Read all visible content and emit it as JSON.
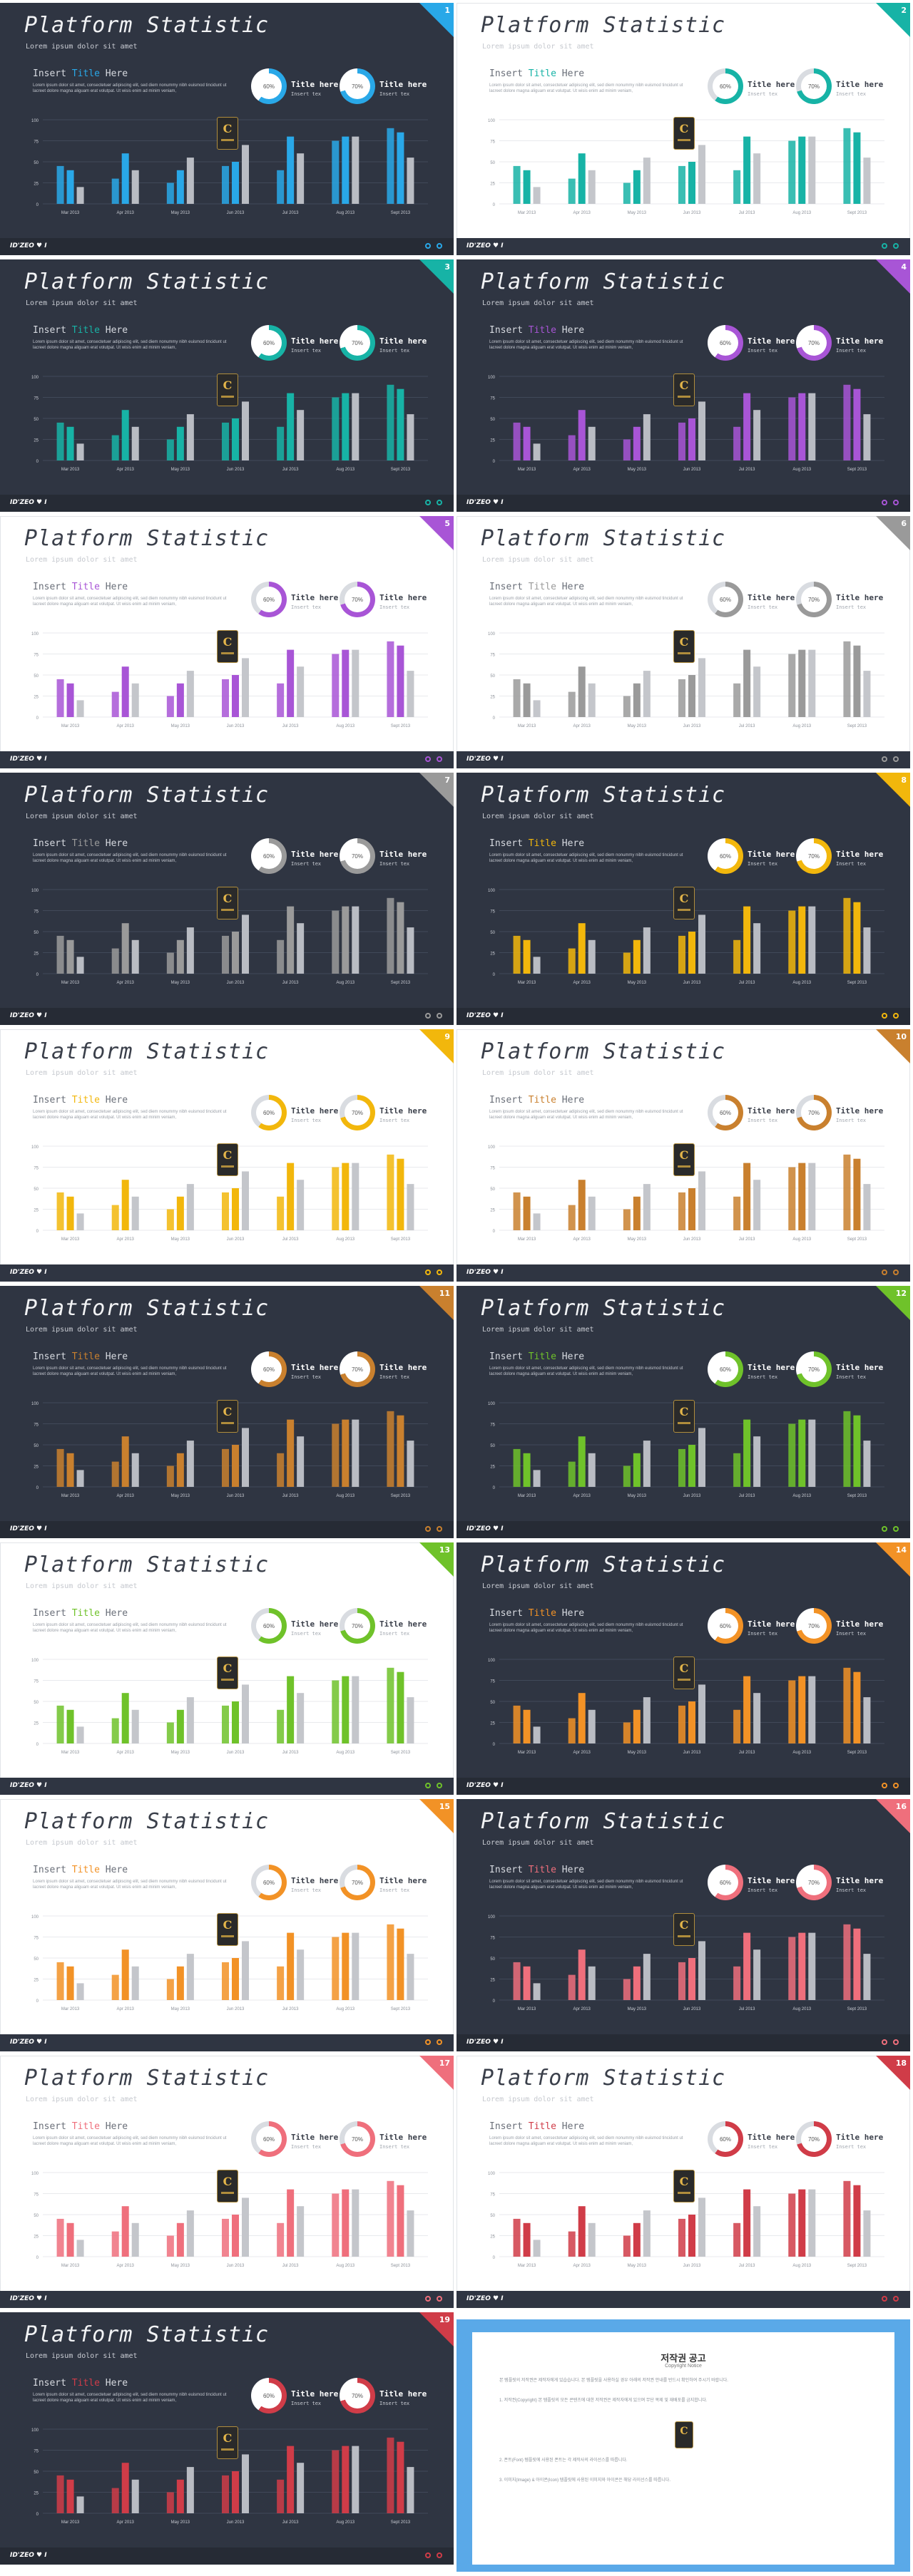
{
  "common": {
    "title": "Platform Statistic",
    "subtitle": "Lorem ipsum dolor sit amet",
    "insert_title_prefix": "Insert ",
    "insert_title_word": "Title",
    "insert_title_suffix": " Here",
    "lorem": "Lorem ipsum dolor sit amet, consectetuer adipiscing elit, sed diem nonummy nibh euismod tincidunt ut lacreet dolore magna aliguam erat volutpat. Ut wisis enim ad minim veniam,",
    "donut1": {
      "value": "60%",
      "pct": 60,
      "title": "Title here",
      "sub": "Insert tex"
    },
    "donut2": {
      "value": "70%",
      "pct": 70,
      "title": "Title here",
      "sub": "Insert tex"
    },
    "footer_brand": "ID'ZEO ♥ I",
    "badge_letter": "C"
  },
  "chart_data": {
    "type": "bar",
    "categories": [
      "Mar 2013",
      "Apr 2013",
      "May 2013",
      "Jun 2013",
      "Jul 2013",
      "Aug 2013",
      "Sept 2013"
    ],
    "ylim": [
      0,
      100
    ],
    "yticks": [
      "0",
      "25",
      "50",
      "75",
      "100"
    ],
    "series": [
      {
        "values": [
          45,
          30,
          25,
          45,
          40,
          75,
          90
        ]
      },
      {
        "values": [
          40,
          60,
          40,
          50,
          80,
          80,
          85
        ]
      },
      {
        "values": [
          20,
          40,
          55,
          70,
          60,
          80,
          55
        ]
      }
    ]
  },
  "slides": [
    {
      "num": "1",
      "theme": "dark",
      "accent": "#29a8e8"
    },
    {
      "num": "2",
      "theme": "light",
      "accent": "#17b3a6"
    },
    {
      "num": "3",
      "theme": "dark",
      "accent": "#17b3a6"
    },
    {
      "num": "4",
      "theme": "dark",
      "accent": "#a855d6"
    },
    {
      "num": "5",
      "theme": "light",
      "accent": "#a855d6"
    },
    {
      "num": "6",
      "theme": "light",
      "accent": "#9a9a9a"
    },
    {
      "num": "7",
      "theme": "dark",
      "accent": "#9a9a9a"
    },
    {
      "num": "8",
      "theme": "dark",
      "accent": "#f2b70c"
    },
    {
      "num": "9",
      "theme": "light",
      "accent": "#f2b70c"
    },
    {
      "num": "10",
      "theme": "light",
      "accent": "#c9802e"
    },
    {
      "num": "11",
      "theme": "dark",
      "accent": "#c9802e"
    },
    {
      "num": "12",
      "theme": "dark",
      "accent": "#6fc22a"
    },
    {
      "num": "13",
      "theme": "light",
      "accent": "#6fc22a"
    },
    {
      "num": "14",
      "theme": "dark",
      "accent": "#f29226"
    },
    {
      "num": "15",
      "theme": "light",
      "accent": "#f29226"
    },
    {
      "num": "16",
      "theme": "dark",
      "accent": "#ef6f7c"
    },
    {
      "num": "17",
      "theme": "light",
      "accent": "#ef6f7c"
    },
    {
      "num": "18",
      "theme": "light",
      "accent": "#d03c48"
    },
    {
      "num": "19",
      "theme": "dark",
      "accent": "#d03c48"
    }
  ],
  "copyright": {
    "title": "저작권 공고",
    "subtitle": "Copyright Notice",
    "paragraphs": [
      "본 템플릿의 저작권은 제작자에게 있습습니다. 본 템플릿을 사용하실 경우 아래의 저작권 안내를 반드시 확인하여 주시기 바랍니다.",
      "1. 저작권(Copyright) 본 템플릿의 모든 콘텐츠에 대한 저작권은 제작자에게 있으며 무단 복제 및 재배포를 금지합니다.",
      "2. 폰트(Font) 템플릿에 사용된 폰트는 각 제작사의 라이선스를 따릅니다.",
      "3. 이미지(Image) & 아이콘(Icon) 템플릿에 사용된 이미지와 아이콘은 해당 라이선스를 따릅니다."
    ]
  }
}
